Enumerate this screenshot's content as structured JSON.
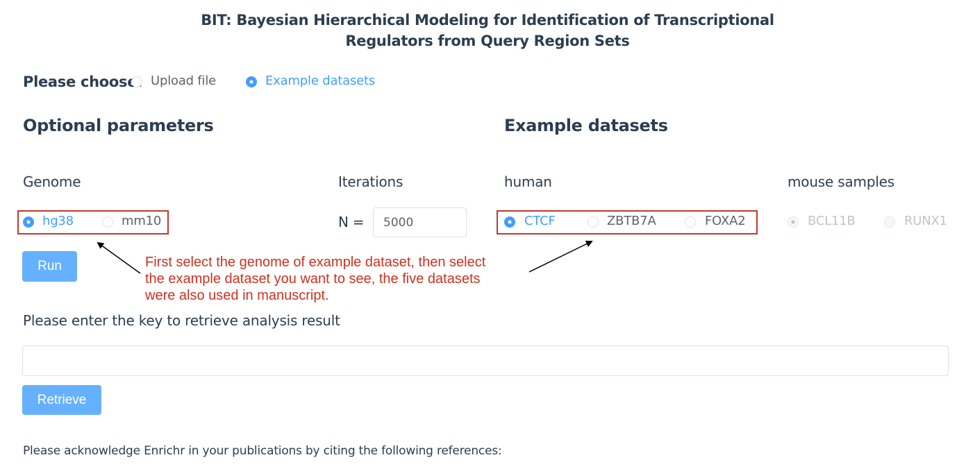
{
  "title": {
    "line1": "BIT: Bayesian Hierarchical Modeling for Identification of Transcriptional",
    "line2": "Regulators from Query Region Sets"
  },
  "choose": {
    "label": "Please choose:",
    "options": [
      {
        "label": "Upload file",
        "checked": false
      },
      {
        "label": "Example datasets",
        "checked": true
      }
    ]
  },
  "optional_parameters": {
    "heading": "Optional parameters",
    "genome": {
      "label": "Genome",
      "options": [
        {
          "label": "hg38",
          "checked": true
        },
        {
          "label": "mm10",
          "checked": false
        }
      ]
    },
    "iterations": {
      "label": "Iterations",
      "prefix": "N =",
      "value": "5000"
    },
    "run_label": "Run"
  },
  "example_datasets": {
    "heading": "Example datasets",
    "human": {
      "label": "human",
      "options": [
        {
          "label": "CTCF",
          "checked": true
        },
        {
          "label": "ZBTB7A",
          "checked": false
        },
        {
          "label": "FOXA2",
          "checked": false
        }
      ]
    },
    "mouse": {
      "label": "mouse samples",
      "options": [
        {
          "label": "BCL11B",
          "checked": true,
          "disabled": true
        },
        {
          "label": "RUNX1",
          "checked": false,
          "disabled": true
        }
      ]
    }
  },
  "annotation": {
    "line1": "First select the genome of example dataset, then select",
    "line2": "the example dataset you want to see, the five datasets",
    "line3": "were also used in manuscript."
  },
  "retrieve": {
    "label": "Please enter the key to retrieve analysis result",
    "value": "",
    "button_label": "Retrieve"
  },
  "acknowledge": "Please acknowledge Enrichr in your publications by citing the following references:",
  "colors": {
    "accent": "#409eff",
    "button": "#66b1ff",
    "annotation": "#d0301f",
    "text": "#2c3e50"
  }
}
